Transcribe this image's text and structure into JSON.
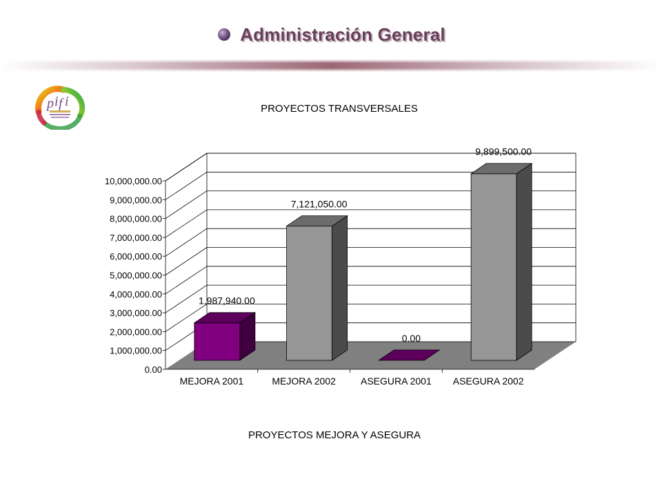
{
  "header": {
    "title": "Administración General",
    "accent_color": "#6a3d5b",
    "bullet_color": "#7b5a8c"
  },
  "logo": {
    "icon": "pifi-logo"
  },
  "chart_data": {
    "type": "bar",
    "style": "3d",
    "title": "PROYECTOS TRANSVERSALES",
    "xlabel": "PROYECTOS MEJORA Y ASEGURA",
    "ylabel": "",
    "categories": [
      "MEJORA 2001",
      "MEJORA 2002",
      "ASEGURA 2001",
      "ASEGURA 2002"
    ],
    "values": [
      1987940,
      7121050,
      0,
      9899500
    ],
    "value_labels": [
      "1,987,940.00",
      "7,121,050.00",
      "0.00",
      "9,899,500.00"
    ],
    "bar_colors": [
      "#800080",
      "#969696",
      "#800080",
      "#969696"
    ],
    "ylim": [
      0,
      10000000
    ],
    "yticks": [
      0,
      1000000,
      2000000,
      3000000,
      4000000,
      5000000,
      6000000,
      7000000,
      8000000,
      9000000,
      10000000
    ],
    "ytick_labels": [
      "0.00",
      "1,000,000.00",
      "2,000,000.00",
      "3,000,000.00",
      "4,000,000.00",
      "5,000,000.00",
      "6,000,000.00",
      "7,000,000.00",
      "8,000,000.00",
      "9,000,000.00",
      "10,000,000.00"
    ],
    "grid": true,
    "legend": "none"
  }
}
